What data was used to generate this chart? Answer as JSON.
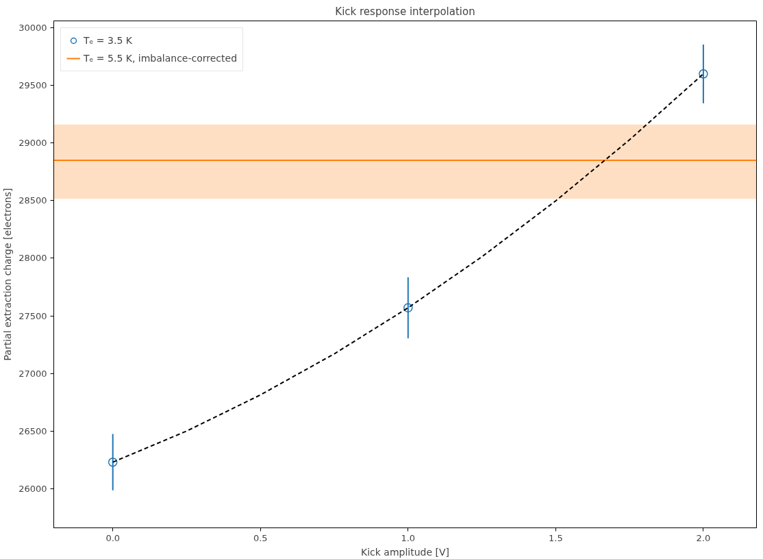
{
  "chart_data": {
    "type": "scatter",
    "title": "Kick response interpolation",
    "xlabel": "Kick amplitude [V]",
    "ylabel": "Partial extraction charge [electrons]",
    "series": [
      {
        "name": "Tₑ = 3.5 K",
        "color": "#1f77b4",
        "marker": "circle",
        "x": [
          0,
          1,
          2
        ],
        "values": [
          26230,
          27570,
          29600
        ],
        "errors": [
          245,
          265,
          255
        ]
      },
      {
        "name": "Tₑ = 5.5 K, imbalance-corrected",
        "type": "line",
        "color": "#ff7f0e",
        "line_style": "solid",
        "marker": "none",
        "x": [
          -0.2,
          2.18
        ],
        "values": [
          28850,
          28850
        ],
        "lower": [
          28515,
          28515
        ],
        "upper": [
          29160,
          29160
        ]
      },
      {
        "type": "line",
        "color": "#000000",
        "line_style": "dashed",
        "marker": "none",
        "x": [
          0,
          0.25,
          0.5,
          0.75,
          1,
          1.25,
          1.5,
          1.75,
          2
        ],
        "values": [
          26230,
          26500,
          26814,
          27170,
          27570,
          28013,
          28498,
          29028,
          29600
        ]
      }
    ],
    "xlim": [
      -0.2,
      2.18
    ],
    "ylim": [
      25660,
      30060
    ],
    "xticks": [
      {
        "value": 0,
        "label": "0.0"
      },
      {
        "value": 0.5,
        "label": "0.5"
      },
      {
        "value": 1,
        "label": "1.0"
      },
      {
        "value": 1.5,
        "label": "1.5"
      },
      {
        "value": 2,
        "label": "2.0"
      }
    ],
    "yticks": [
      26000,
      26500,
      27000,
      27500,
      28000,
      28500,
      29000,
      29500,
      30000
    ],
    "grid": false,
    "legend": "top left"
  }
}
